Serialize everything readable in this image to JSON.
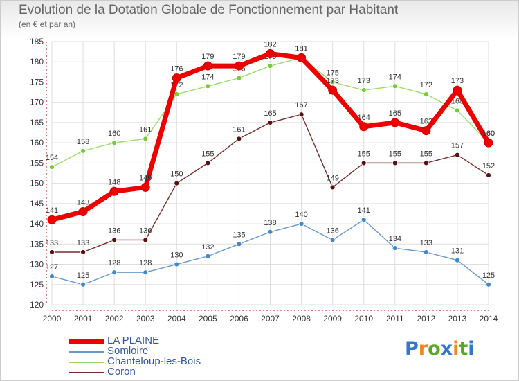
{
  "title": "Evolution de la Dotation Globale de Fonctionnement par Habitant",
  "subtitle": "(en € et par an)",
  "logo": "Proxiti",
  "logo_colors": [
    "#3377cc",
    "#ee8822",
    "#55aa22",
    "#3377cc",
    "#ee8822",
    "#55aa22",
    "#3377cc"
  ],
  "chart_data": {
    "type": "line",
    "title": "Evolution de la Dotation Globale de Fonctionnement par Habitant",
    "ylabel": "(en € et par an)",
    "xlabel": "",
    "ylim": [
      120,
      185
    ],
    "yticks": [
      120,
      125,
      130,
      135,
      140,
      145,
      150,
      155,
      160,
      165,
      170,
      175,
      180,
      185
    ],
    "categories": [
      "2000",
      "2001",
      "2002",
      "2003",
      "2004",
      "2005",
      "2006",
      "2007",
      "2008",
      "2009",
      "2010",
      "2011",
      "2012",
      "2013",
      "2014"
    ],
    "grid": true,
    "legend_position": "bottom-left",
    "series": [
      {
        "name": "Somloire",
        "color": "#6699cc",
        "marker": "#4488cc",
        "values": [
          127,
          125,
          128,
          128,
          130,
          132,
          135,
          138,
          140,
          136,
          141,
          134,
          133,
          131,
          125
        ]
      },
      {
        "name": "Coron",
        "color": "#7a2a2a",
        "marker": "#5a1010",
        "values": [
          133,
          133,
          136,
          136,
          150,
          155,
          161,
          165,
          167,
          149,
          155,
          155,
          155,
          157,
          152
        ]
      },
      {
        "name": "Chanteloup-les-Bois",
        "color": "#99dd66",
        "marker": "#77cc33",
        "values": [
          154,
          158,
          160,
          161,
          172,
          174,
          176,
          179,
          181,
          175,
          173,
          174,
          172,
          168,
          160
        ]
      },
      {
        "name": "LA PLAINE",
        "color": "#ee0000",
        "marker": "#ee0000",
        "bold": true,
        "values": [
          141,
          143,
          148,
          149,
          176,
          179,
          179,
          182,
          181,
          173,
          164,
          165,
          163,
          173,
          160
        ]
      }
    ],
    "legend_order": [
      "LA PLAINE",
      "Somloire",
      "Chanteloup-les-Bois",
      "Coron"
    ]
  }
}
